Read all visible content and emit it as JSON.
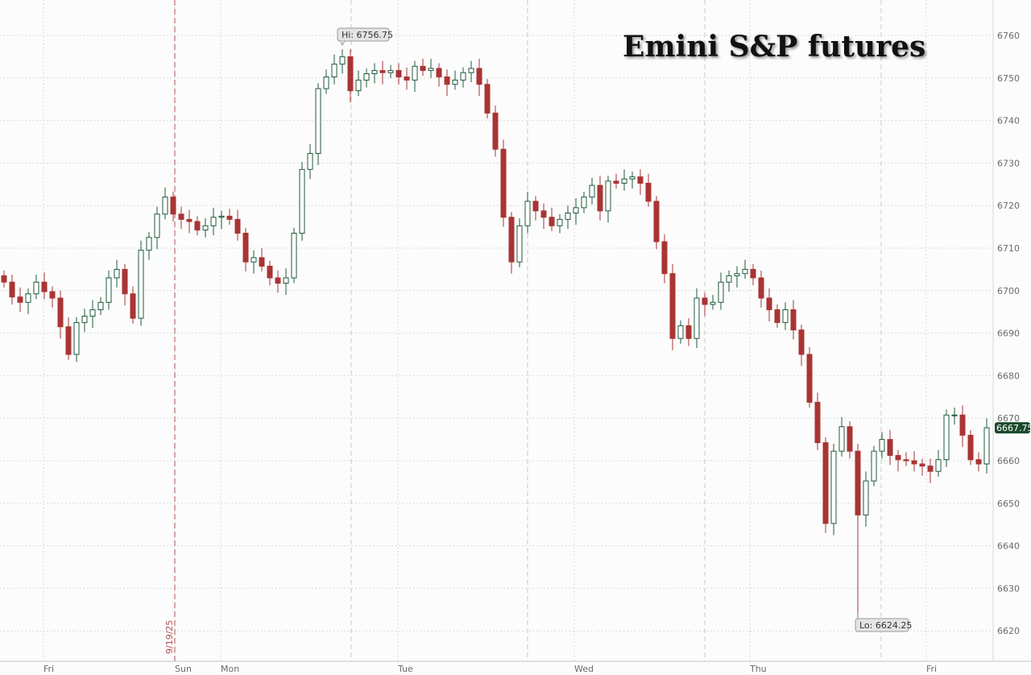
{
  "chart_data": {
    "type": "candlestick",
    "title": "Emini S&P futures",
    "ylim": [
      6615,
      6765
    ],
    "yticks": [
      6620,
      6630,
      6640,
      6650,
      6660,
      6670,
      6680,
      6690,
      6700,
      6710,
      6720,
      6730,
      6740,
      6750,
      6760
    ],
    "grid": true,
    "x_ticks": [
      {
        "label": "Fri",
        "index": 4.9
      },
      {
        "label": "Sun",
        "index": 21.2
      },
      {
        "label": "Mon",
        "index": 26.9
      },
      {
        "label": "Tue",
        "index": 48.9
      },
      {
        "label": "Wed",
        "index": 70.8
      },
      {
        "label": "Thu",
        "index": 92.6
      },
      {
        "label": "Fri",
        "index": 114.5
      }
    ],
    "session_separators": [
      43.1,
      65.0,
      87.0,
      108.9
    ],
    "date_marker": {
      "label": "9/19/25",
      "index": 21.2
    },
    "closes": [
      6702,
      6698.5,
      6697.25,
      6699.25,
      6702,
      6699.75,
      6698.25,
      6691.5,
      6685,
      6692.5,
      6694,
      6695.5,
      6697.25,
      6703,
      6705,
      6699.25,
      6693.5,
      6709.5,
      6712.5,
      6718,
      6722,
      6718,
      6716.75,
      6716.25,
      6714.25,
      6715.25,
      6717.25,
      6717.5,
      6716.75,
      6713.5,
      6706.75,
      6707.75,
      6705.75,
      6703,
      6701.75,
      6703,
      6713.5,
      6728.5,
      6732.25,
      6747.5,
      6750.25,
      6753.25,
      6755,
      6747,
      6749.5,
      6751,
      6751.75,
      6751.25,
      6751.75,
      6750.25,
      6749.5,
      6752.75,
      6751.75,
      6752.25,
      6750.25,
      6748.5,
      6749.5,
      6751.25,
      6752.25,
      6748.5,
      6741.75,
      6733.25,
      6717.25,
      6706.75,
      6715.25,
      6721,
      6718.75,
      6717.25,
      6715.25,
      6716.75,
      6718.25,
      6719.5,
      6722,
      6724.75,
      6718.75,
      6725.75,
      6725.25,
      6726.25,
      6726.75,
      6725.25,
      6721,
      6711.5,
      6704,
      6688.75,
      6691.75,
      6688.75,
      6698.25,
      6696.75,
      6697.25,
      6702,
      6703.5,
      6704,
      6705,
      6703,
      6698.25,
      6695.5,
      6692.5,
      6695.5,
      6690.75,
      6685,
      6673.75,
      6664.25,
      6645.25,
      6662.25,
      6668,
      6662.25,
      6647.25,
      6655.25,
      6662.25,
      6665,
      6661.25,
      6660.25,
      6660,
      6659.25,
      6658.75,
      6657.5,
      6660.25,
      6670.75,
      6670.75,
      6666,
      6660.25,
      6659.25,
      6667.75
    ],
    "annotations": [
      {
        "label": "Hi: 6756.75",
        "value": 6756.75,
        "index": 42,
        "kind": "high"
      },
      {
        "label": "Lo: 6624.25",
        "value": 6624.25,
        "index": 106,
        "kind": "low"
      }
    ],
    "last_price": {
      "label": "6667.75",
      "value": 6667.75
    },
    "colors": {
      "up": "#1f5a3c",
      "up_fill": "#ffffff",
      "down": "#a93434",
      "last_price_bg": "#1d4a2e",
      "date_marker": "#b05050",
      "grid": "#cfcfcf"
    }
  }
}
